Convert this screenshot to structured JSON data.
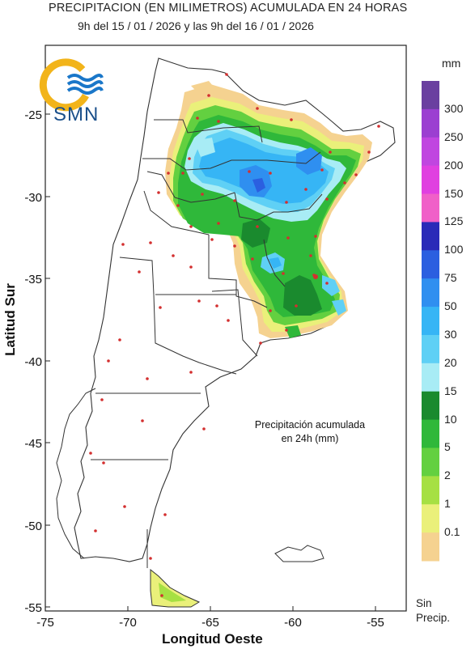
{
  "header": {
    "title": "PRECIPITACION (EN MILIMETROS) ACUMULADA EN 24 HORAS",
    "subtitle": "9h del 15 / 01 / 2026  y las 9h del 16 / 01 / 2026"
  },
  "logo": {
    "text": "SMN"
  },
  "axes": {
    "ylabel": "Latitud Sur",
    "xlabel": "Longitud Oeste",
    "yticks": [
      "-25",
      "-30",
      "-35",
      "-40",
      "-45",
      "-50",
      "-55"
    ],
    "xticks": [
      "-75",
      "-70",
      "-65",
      "-60",
      "-55"
    ]
  },
  "annotation": {
    "line1": "Precipitación acumulada",
    "line2": "en 24h (mm)"
  },
  "legend": {
    "unit": "mm",
    "labels": [
      "300",
      "250",
      "200",
      "150",
      "125",
      "100",
      "75",
      "50",
      "30",
      "20",
      "15",
      "10",
      "5",
      "2",
      "1",
      "0.1"
    ],
    "no_precip_line1": "Sin",
    "no_precip_line2": "Precip.",
    "colors": [
      "#6a3fa0",
      "#9b3fd1",
      "#c046e0",
      "#e040e0",
      "#f060c8",
      "#2a2ab8",
      "#2b5fe0",
      "#2f8ff0",
      "#36b5f5",
      "#5fd0f5",
      "#a8ecf5",
      "#1a8a2e",
      "#2fb83a",
      "#63d040",
      "#a6e043",
      "#eaf07a",
      "#f5d290"
    ]
  }
}
